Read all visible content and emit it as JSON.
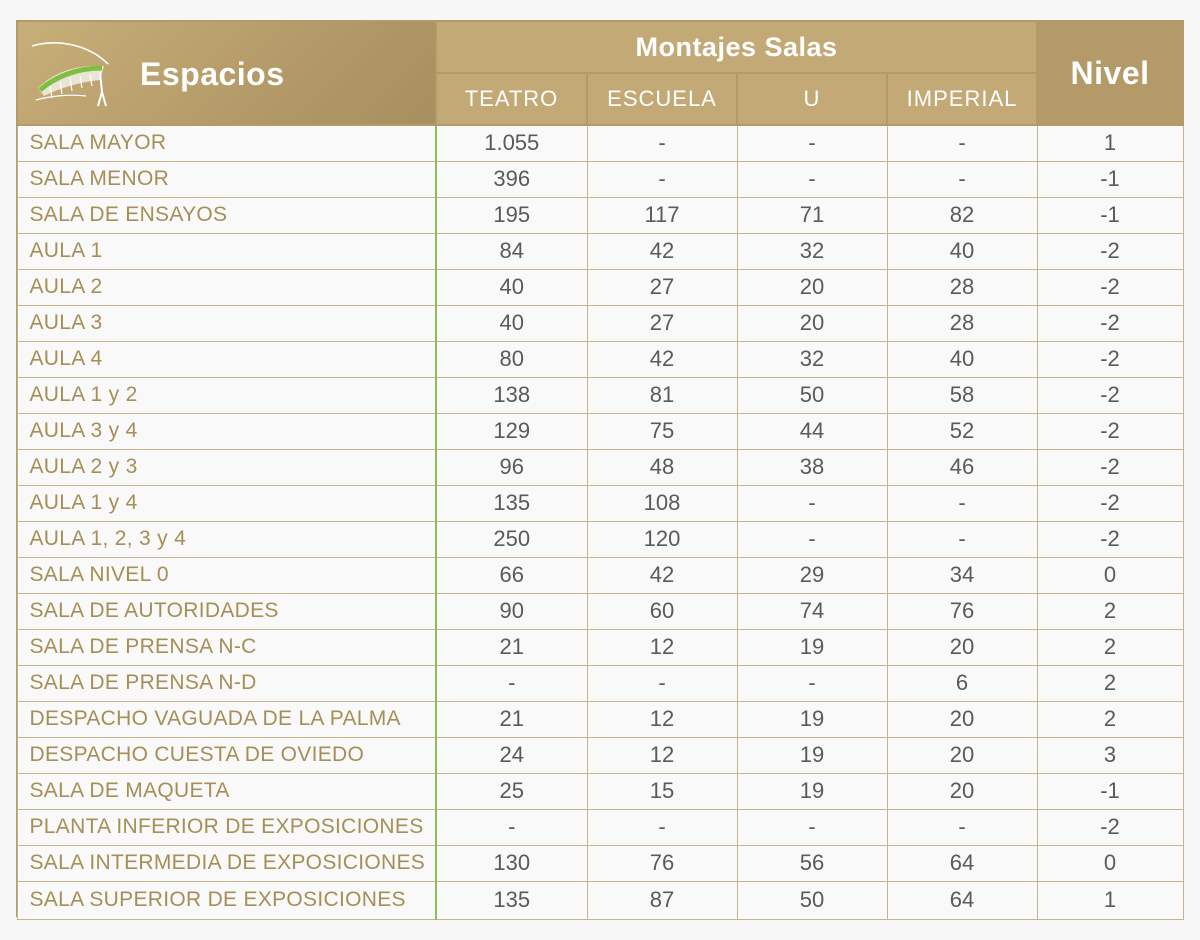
{
  "header": {
    "espacios_label": "Espacios",
    "montajes_label": "Montajes Salas",
    "nivel_label": "Nivel",
    "columns": [
      "TEATRO",
      "ESCUELA",
      "U",
      "IMPERIAL"
    ]
  },
  "colors": {
    "header_gold": "#c3a975",
    "name_text": "#a58f57",
    "value_text": "#5a5a5a",
    "divider_green": "#8bbf5a"
  },
  "rows": [
    {
      "name": "SALA MAYOR",
      "teatro": "1.055",
      "escuela": "-",
      "u": "-",
      "imperial": "-",
      "nivel": "1"
    },
    {
      "name": "SALA MENOR",
      "teatro": "396",
      "escuela": "-",
      "u": "-",
      "imperial": "-",
      "nivel": "-1"
    },
    {
      "name": "SALA DE ENSAYOS",
      "teatro": "195",
      "escuela": "117",
      "u": "71",
      "imperial": "82",
      "nivel": "-1"
    },
    {
      "name": "AULA 1",
      "teatro": "84",
      "escuela": "42",
      "u": "32",
      "imperial": "40",
      "nivel": "-2"
    },
    {
      "name": "AULA 2",
      "teatro": "40",
      "escuela": "27",
      "u": "20",
      "imperial": "28",
      "nivel": "-2"
    },
    {
      "name": "AULA 3",
      "teatro": "40",
      "escuela": "27",
      "u": "20",
      "imperial": "28",
      "nivel": "-2"
    },
    {
      "name": "AULA 4",
      "teatro": "80",
      "escuela": "42",
      "u": "32",
      "imperial": "40",
      "nivel": "-2"
    },
    {
      "name": "AULA 1 y 2",
      "teatro": "138",
      "escuela": "81",
      "u": "50",
      "imperial": "58",
      "nivel": "-2"
    },
    {
      "name": "AULA 3 y 4",
      "teatro": "129",
      "escuela": "75",
      "u": "44",
      "imperial": "52",
      "nivel": "-2"
    },
    {
      "name": "AULA 2 y 3",
      "teatro": "96",
      "escuela": "48",
      "u": "38",
      "imperial": "46",
      "nivel": "-2"
    },
    {
      "name": "AULA 1 y 4",
      "teatro": "135",
      "escuela": "108",
      "u": "-",
      "imperial": "-",
      "nivel": "-2"
    },
    {
      "name": "AULA 1, 2, 3 y 4",
      "teatro": "250",
      "escuela": "120",
      "u": "-",
      "imperial": "-",
      "nivel": "-2"
    },
    {
      "name": "SALA NIVEL 0",
      "teatro": "66",
      "escuela": "42",
      "u": "29",
      "imperial": "34",
      "nivel": "0"
    },
    {
      "name": "SALA DE AUTORIDADES",
      "teatro": "90",
      "escuela": "60",
      "u": "74",
      "imperial": "76",
      "nivel": "2"
    },
    {
      "name": "SALA DE PRENSA N-C",
      "teatro": "21",
      "escuela": "12",
      "u": "19",
      "imperial": "20",
      "nivel": "2"
    },
    {
      "name": "SALA DE PRENSA N-D",
      "teatro": "-",
      "escuela": "-",
      "u": "-",
      "imperial": "6",
      "nivel": "2"
    },
    {
      "name": "DESPACHO VAGUADA DE LA PALMA",
      "teatro": "21",
      "escuela": "12",
      "u": "19",
      "imperial": "20",
      "nivel": "2"
    },
    {
      "name": "DESPACHO CUESTA DE OVIEDO",
      "teatro": "24",
      "escuela": "12",
      "u": "19",
      "imperial": "20",
      "nivel": "3"
    },
    {
      "name": "SALA DE MAQUETA",
      "teatro": "25",
      "escuela": "15",
      "u": "19",
      "imperial": "20",
      "nivel": "-1"
    },
    {
      "name": "PLANTA INFERIOR DE EXPOSICIONES",
      "teatro": "-",
      "escuela": "-",
      "u": "-",
      "imperial": "-",
      "nivel": "-2"
    },
    {
      "name": "SALA INTERMEDIA DE EXPOSICIONES",
      "teatro": "130",
      "escuela": "76",
      "u": "56",
      "imperial": "64",
      "nivel": "0"
    },
    {
      "name": "SALA SUPERIOR DE EXPOSICIONES",
      "teatro": "135",
      "escuela": "87",
      "u": "50",
      "imperial": "64",
      "nivel": "1"
    }
  ]
}
